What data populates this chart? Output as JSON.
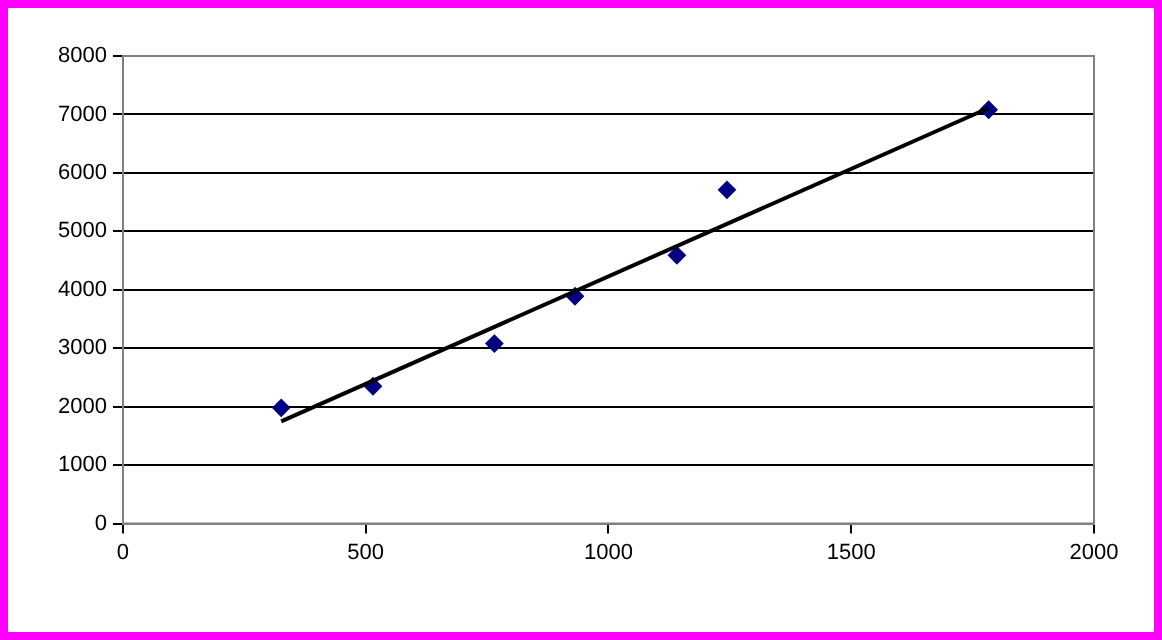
{
  "chart_data": {
    "type": "scatter",
    "xlim": [
      0,
      2000
    ],
    "xticks": [
      0,
      500,
      1000,
      1500,
      2000
    ],
    "ylim": [
      0,
      8000
    ],
    "yticks": [
      0,
      1000,
      2000,
      3000,
      4000,
      5000,
      6000,
      7000,
      8000
    ],
    "grid": "y",
    "legend": false,
    "series": [
      {
        "color": "#000080",
        "marker": "diamond",
        "x": [
          326,
          515,
          765,
          931,
          1141,
          1244,
          1783
        ],
        "values": [
          1980,
          2350,
          3080,
          3890,
          4590,
          5710,
          7080
        ]
      },
      {
        "type": "line",
        "color": "#000000",
        "marker": "none",
        "line_style": "solid",
        "x": [
          326,
          1783
        ],
        "values": [
          1750,
          7110
        ]
      }
    ]
  }
}
